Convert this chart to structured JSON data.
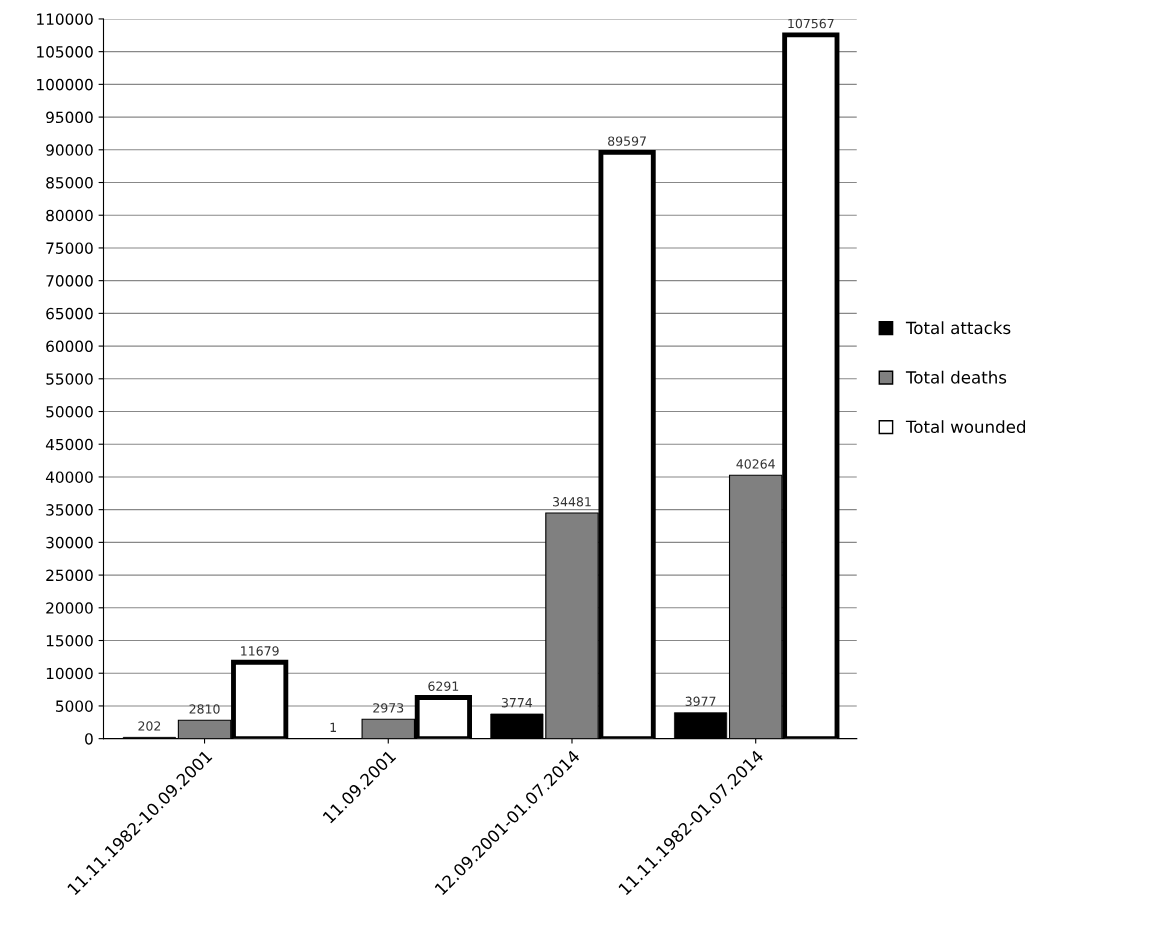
{
  "chart_data": {
    "type": "bar",
    "categories": [
      "11.11.1982-10.09.2001",
      "11.09.2001",
      "12.09.2001-01.07.2014",
      "11.11.1982-01.07.2014"
    ],
    "series": [
      {
        "name": "Total attacks",
        "color": "#000000",
        "values": [
          202,
          1,
          3774,
          3977
        ]
      },
      {
        "name": "Total deaths",
        "color": "#808080",
        "values": [
          2810,
          2973,
          34481,
          40264
        ]
      },
      {
        "name": "Total wounded",
        "color": "#ffffff",
        "values": [
          11679,
          6291,
          89597,
          107567
        ]
      }
    ],
    "ylim": [
      0,
      110000
    ],
    "yticks": [
      0,
      5000,
      10000,
      15000,
      20000,
      25000,
      30000,
      35000,
      40000,
      45000,
      50000,
      55000,
      60000,
      65000,
      70000,
      75000,
      80000,
      85000,
      90000,
      95000,
      100000,
      105000,
      110000
    ],
    "grid": "y",
    "legend": "right",
    "data_labels": true
  }
}
